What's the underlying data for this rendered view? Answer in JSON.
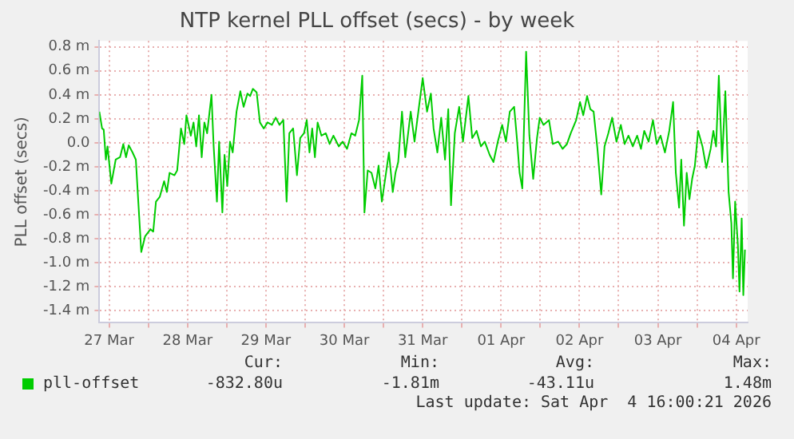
{
  "chart_data": {
    "type": "line",
    "title": "NTP kernel PLL offset (secs) - by week",
    "ylabel": "PLL offset (secs)",
    "xlim": [
      "2026-03-27T09:00",
      "2026-04-04T15:30"
    ],
    "xticks": [
      {
        "value": "2026-03-27T12:00",
        "label": "27 Mar"
      },
      {
        "value": "2026-03-28",
        "label": null
      },
      {
        "value": "2026-03-28T12:00",
        "label": "28 Mar"
      },
      {
        "value": "2026-03-29",
        "label": null
      },
      {
        "value": "2026-03-29T12:00",
        "label": "29 Mar"
      },
      {
        "value": "2026-03-30",
        "label": null
      },
      {
        "value": "2026-03-30T12:00",
        "label": "30 Mar"
      },
      {
        "value": "2026-03-31",
        "label": null
      },
      {
        "value": "2026-03-31T12:00",
        "label": "31 Mar"
      },
      {
        "value": "2026-04-01",
        "label": null
      },
      {
        "value": "2026-04-01T12:00",
        "label": "01 Apr"
      },
      {
        "value": "2026-04-02",
        "label": null
      },
      {
        "value": "2026-04-02T12:00",
        "label": "02 Apr"
      },
      {
        "value": "2026-04-03",
        "label": null
      },
      {
        "value": "2026-04-03T12:00",
        "label": "03 Apr"
      },
      {
        "value": "2026-04-04",
        "label": null
      },
      {
        "value": "2026-04-04T12:00",
        "label": "04 Apr"
      }
    ],
    "ylim": [
      -1.5,
      0.85
    ],
    "yticks": [
      {
        "value": -1.4,
        "label": "-1.4 m"
      },
      {
        "value": -1.2,
        "label": "-1.2 m"
      },
      {
        "value": -1.0,
        "label": "-1.0 m"
      },
      {
        "value": -0.8,
        "label": "-0.8 m"
      },
      {
        "value": -0.6,
        "label": "-0.6 m"
      },
      {
        "value": -0.4,
        "label": "-0.4 m"
      },
      {
        "value": -0.2,
        "label": "-0.2 m"
      },
      {
        "value": 0,
        "label": "0.0"
      },
      {
        "value": 0.2,
        "label": "0.2 m"
      },
      {
        "value": 0.4,
        "label": "0.4 m"
      },
      {
        "value": 0.6,
        "label": "0.6 m"
      },
      {
        "value": 0.8,
        "label": "0.8 m"
      }
    ],
    "grid": true,
    "legend": "bottom",
    "annotations": [
      "Cur:",
      "Min:",
      "Avg:",
      "Max:",
      "-832.80u",
      "-1.81m",
      "-43.11u",
      "1.48m",
      "Last update: Sat Apr  4 16:00:21 2026"
    ],
    "x": [
      "2026-03-27T09:00",
      "2026-03-27T09:50",
      "2026-03-27T10:20",
      "2026-03-27T11:00",
      "2026-03-27T11:30",
      "2026-03-27T12:40",
      "2026-03-27T14:00",
      "2026-03-27T15:20",
      "2026-03-27T16:20",
      "2026-03-27T17:10",
      "2026-03-27T18:00",
      "2026-03-27T19:10",
      "2026-03-27T20:10",
      "2026-03-27T21:50",
      "2026-03-27T23:00",
      "2026-03-28T00:40",
      "2026-03-28T01:30",
      "2026-03-28T02:20",
      "2026-03-28T03:30",
      "2026-03-28T04:50",
      "2026-03-28T05:40",
      "2026-03-28T06:30",
      "2026-03-28T08:00",
      "2026-03-28T08:50",
      "2026-03-28T10:00",
      "2026-03-28T11:00",
      "2026-03-28T11:40",
      "2026-03-28T13:00",
      "2026-03-28T13:50",
      "2026-03-28T14:40",
      "2026-03-28T15:30",
      "2026-03-28T16:20",
      "2026-03-28T17:10",
      "2026-03-28T18:00",
      "2026-03-28T19:20",
      "2026-03-28T20:00",
      "2026-03-28T21:00",
      "2026-03-28T21:40",
      "2026-03-28T22:40",
      "2026-03-28T23:20",
      "2026-03-29T00:10",
      "2026-03-29T01:00",
      "2026-03-29T01:50",
      "2026-03-29T03:00",
      "2026-03-29T04:10",
      "2026-03-29T05:10",
      "2026-03-29T06:20",
      "2026-03-29T07:10",
      "2026-03-29T08:00",
      "2026-03-29T09:10",
      "2026-03-29T10:10",
      "2026-03-29T11:20",
      "2026-03-29T12:30",
      "2026-03-29T13:50",
      "2026-03-29T15:00",
      "2026-03-29T16:10",
      "2026-03-29T17:20",
      "2026-03-29T18:20",
      "2026-03-29T19:10",
      "2026-03-29T20:20",
      "2026-03-29T21:30",
      "2026-03-29T22:30",
      "2026-03-29T23:40",
      "2026-03-30T00:30",
      "2026-03-30T01:20",
      "2026-03-30T02:10",
      "2026-03-30T03:00",
      "2026-03-30T03:50",
      "2026-03-30T05:00",
      "2026-03-30T06:20",
      "2026-03-30T07:30",
      "2026-03-30T08:40",
      "2026-03-30T10:20",
      "2026-03-30T11:30",
      "2026-03-30T12:50",
      "2026-03-30T14:10",
      "2026-03-30T15:20",
      "2026-03-30T16:30",
      "2026-03-30T17:30",
      "2026-03-30T18:10",
      "2026-03-30T19:10",
      "2026-03-30T20:20",
      "2026-03-30T21:30",
      "2026-03-30T22:30",
      "2026-03-30T23:30",
      "2026-03-31T00:40",
      "2026-03-31T01:40",
      "2026-03-31T02:50",
      "2026-03-31T03:40",
      "2026-03-31T04:30",
      "2026-03-31T05:40",
      "2026-03-31T06:40",
      "2026-03-31T08:20",
      "2026-03-31T09:30",
      "2026-03-31T10:40",
      "2026-03-31T12:00",
      "2026-03-31T13:20",
      "2026-03-31T14:30",
      "2026-03-31T15:20",
      "2026-03-31T16:30",
      "2026-03-31T17:40",
      "2026-03-31T18:50",
      "2026-03-31T19:50",
      "2026-03-31T20:40",
      "2026-03-31T21:50",
      "2026-03-31T23:10",
      "2026-04-01T00:20",
      "2026-04-01T02:00",
      "2026-04-01T03:10",
      "2026-04-01T04:30",
      "2026-04-01T05:50",
      "2026-04-01T07:00",
      "2026-04-01T08:30",
      "2026-04-01T09:40",
      "2026-04-01T11:00",
      "2026-04-01T12:20",
      "2026-04-01T13:30",
      "2026-04-01T14:40",
      "2026-04-01T16:00",
      "2026-04-01T16:50",
      "2026-04-01T17:40",
      "2026-04-01T18:30",
      "2026-04-01T19:40",
      "2026-04-01T20:40",
      "2026-04-01T21:50",
      "2026-04-01T23:00",
      "2026-04-01T23:50",
      "2026-04-02T01:00",
      "2026-04-02T02:40",
      "2026-04-02T03:50",
      "2026-04-02T05:30",
      "2026-04-02T06:50",
      "2026-04-02T08:10",
      "2026-04-02T09:20",
      "2026-04-02T11:00",
      "2026-04-02T12:10",
      "2026-04-02T13:10",
      "2026-04-02T14:20",
      "2026-04-02T15:20",
      "2026-04-02T16:20",
      "2026-04-02T17:30",
      "2026-04-02T18:40",
      "2026-04-02T19:40",
      "2026-04-02T20:50",
      "2026-04-02T22:00",
      "2026-04-02T23:20",
      "2026-04-03T00:40",
      "2026-04-03T01:50",
      "2026-04-03T03:00",
      "2026-04-03T04:20",
      "2026-04-03T05:40",
      "2026-04-03T06:50",
      "2026-04-03T07:50",
      "2026-04-03T09:10",
      "2026-04-03T10:30",
      "2026-04-03T11:40",
      "2026-04-03T12:50",
      "2026-04-03T14:10",
      "2026-04-03T15:30",
      "2026-04-03T16:40",
      "2026-04-03T17:30",
      "2026-04-03T18:30",
      "2026-04-03T19:10",
      "2026-04-03T20:00",
      "2026-04-03T20:50",
      "2026-04-03T21:40",
      "2026-04-03T22:30",
      "2026-04-03T23:20",
      "2026-04-04T00:20",
      "2026-04-04T01:40",
      "2026-04-04T02:50",
      "2026-04-04T04:10",
      "2026-04-04T05:00",
      "2026-04-04T05:50",
      "2026-04-04T06:40",
      "2026-04-04T07:40",
      "2026-04-04T08:40",
      "2026-04-04T09:40",
      "2026-04-04T10:30",
      "2026-04-04T11:00",
      "2026-04-04T11:40",
      "2026-04-04T12:30",
      "2026-04-04T13:00",
      "2026-04-04T13:40",
      "2026-04-04T14:10",
      "2026-04-04T14:40"
    ],
    "series": [
      {
        "name": "pll-offset",
        "color": "#00cc00",
        "values": [
          0.26,
          0.12,
          0.11,
          -0.14,
          -0.03,
          -0.34,
          -0.14,
          -0.12,
          -0.01,
          -0.12,
          -0.02,
          -0.08,
          -0.14,
          -0.91,
          -0.78,
          -0.72,
          -0.74,
          -0.49,
          -0.45,
          -0.32,
          -0.41,
          -0.25,
          -0.27,
          -0.23,
          0.12,
          -0.01,
          0.23,
          0.06,
          0.17,
          -0.03,
          0.23,
          -0.12,
          0.17,
          0.08,
          0.4,
          -0.03,
          -0.49,
          0.01,
          -0.58,
          -0.1,
          -0.36,
          0.01,
          -0.08,
          0.26,
          0.43,
          0.3,
          0.41,
          0.39,
          0.45,
          0.42,
          0.17,
          0.12,
          0.17,
          0.15,
          0.21,
          0.15,
          0.19,
          -0.49,
          0.08,
          0.12,
          -0.27,
          0.04,
          0.08,
          0.19,
          -0.08,
          0.12,
          -0.12,
          0.17,
          0.06,
          0.08,
          -0.01,
          0.06,
          -0.03,
          0.01,
          -0.05,
          0.08,
          0.06,
          0.19,
          0.56,
          -0.58,
          -0.23,
          -0.25,
          -0.38,
          -0.19,
          -0.49,
          -0.27,
          -0.08,
          -0.41,
          -0.25,
          -0.16,
          0.26,
          -0.12,
          0.26,
          0.01,
          0.26,
          0.54,
          0.26,
          0.41,
          0.12,
          -0.08,
          0.21,
          -0.14,
          0.28,
          -0.52,
          0.08,
          0.3,
          0.01,
          0.39,
          0.04,
          0.1,
          -0.03,
          0.01,
          -0.1,
          -0.16,
          0.01,
          0.15,
          0.01,
          0.26,
          0.3,
          0.04,
          -0.25,
          -0.38,
          0.76,
          0.06,
          -0.3,
          0.04,
          0.21,
          0.15,
          0.19,
          -0.01,
          0.01,
          -0.05,
          -0.01,
          0.08,
          0.19,
          0.34,
          0.23,
          0.39,
          0.28,
          0.26,
          -0.05,
          -0.43,
          -0.03,
          0.08,
          0.21,
          0.01,
          0.15,
          -0.01,
          0.06,
          -0.03,
          0.06,
          -0.05,
          0.1,
          0.01,
          0.19,
          -0.01,
          0.06,
          -0.08,
          0.1,
          0.34,
          -0.25,
          -0.54,
          -0.14,
          -0.69,
          -0.25,
          -0.47,
          -0.3,
          -0.19,
          0.1,
          -0.03,
          -0.21,
          -0.05,
          0.1,
          -0.03,
          0.56,
          -0.16,
          0.43,
          -0.41,
          -0.67,
          -1.13,
          -0.49,
          -0.85,
          -1.24,
          -0.63,
          -1.27,
          -0.89
        ]
      }
    ]
  }
}
